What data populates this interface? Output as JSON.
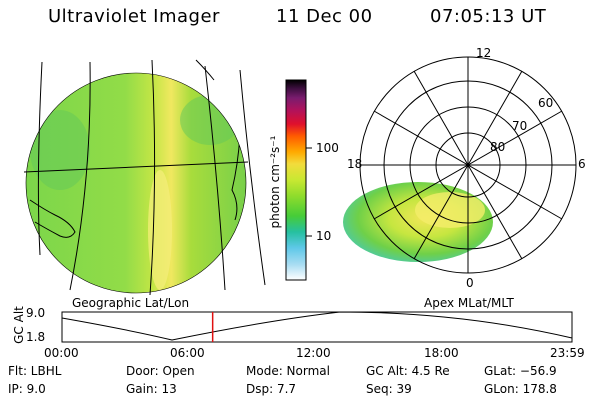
{
  "header": {
    "instrument": "Ultraviolet Imager",
    "date": "11 Dec 00",
    "time": "07:05:13 UT"
  },
  "colorbar": {
    "label": "photon cm⁻²s⁻¹",
    "ticks": [
      "100",
      "10"
    ],
    "colors": [
      "#000000",
      "#3a0e3c",
      "#7a1c6e",
      "#b0125c",
      "#e0102c",
      "#ff5a00",
      "#ffaa00",
      "#f2dc3c",
      "#c8e832",
      "#8fdc2c",
      "#46cc38",
      "#26c0a0",
      "#5fc8e8",
      "#a6dcf2",
      "#ffffff"
    ]
  },
  "left_panel": {
    "caption": "Geographic Lat/Lon"
  },
  "right_panel": {
    "caption": "Apex MLat/MLT",
    "mlt_labels": {
      "top": "12",
      "left": "18",
      "right": "6",
      "bottom": "0"
    },
    "lat_labels": [
      "60",
      "70",
      "80"
    ]
  },
  "timeline": {
    "ylabel": "GC Alt",
    "yticks": [
      "9.0",
      "1.8"
    ],
    "xticks": [
      "00:00",
      "06:00",
      "12:00",
      "18:00",
      "23:59"
    ],
    "marker_hours": 7.09
  },
  "info": {
    "flt": "Flt: LBHL",
    "ip": "IP:  9.0",
    "door": "Door: Open",
    "gain": "Gain: 13",
    "mode": "Mode: Normal",
    "dsp": "Dsp:     7.7",
    "gcalt": "GC Alt: 4.5 Re",
    "seq": "Seq: 39",
    "glat": "GLat: −56.9",
    "glon": "GLon: 178.8"
  },
  "colors": {
    "marker": "#e01010",
    "aurora_main": "#a8dc3c",
    "aurora_bright": "#f2e65a"
  }
}
